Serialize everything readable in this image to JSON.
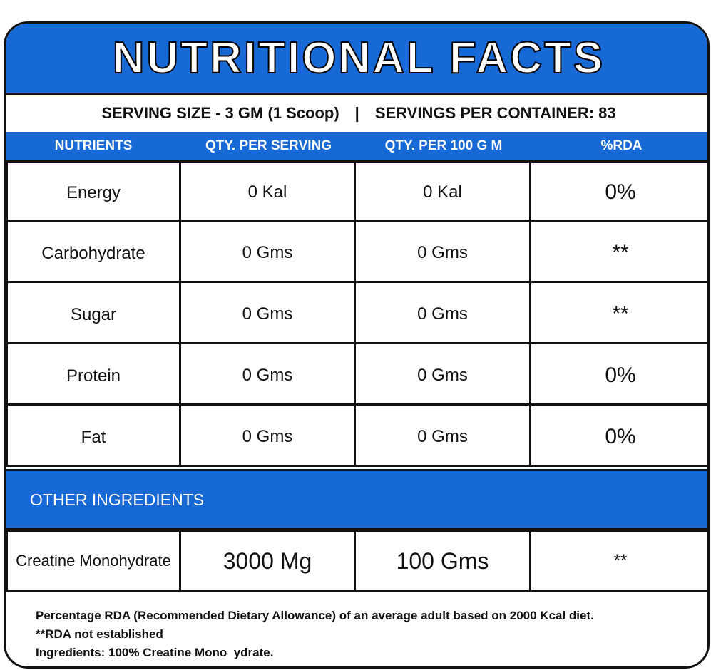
{
  "header": {
    "title": "NUTRITIONAL FACTS"
  },
  "serving": {
    "size": "SERVING SIZE - 3 GM (1 Scoop)",
    "separator": "|",
    "per_container": "SERVINGS PER CONTAINER: 83"
  },
  "table": {
    "columns": [
      "NUTRIENTS",
      "QTY. PER SERVING",
      "QTY. PER 100 G M",
      "%RDA"
    ],
    "rows": [
      [
        "Energy",
        "0 Kal",
        "0 Kal",
        "0%"
      ],
      [
        "Carbohydrate",
        "0 Gms",
        "0 Gms",
        "**"
      ],
      [
        "Sugar",
        "0 Gms",
        "0 Gms",
        "**"
      ],
      [
        "Protein",
        "0 Gms",
        "0 Gms",
        "0%"
      ],
      [
        "Fat",
        "0 Gms",
        "0 Gms",
        "0%"
      ]
    ]
  },
  "other": {
    "title": "OTHER INGREDIENTS",
    "rows": [
      [
        "Creatine Monohydrate",
        "3000 Mg",
        "100 Gms",
        "**"
      ]
    ]
  },
  "footer": {
    "lines": [
      "Percentage RDA (Recommended Dietary Allowance) of an average adult based on 2000 Kcal diet.",
      "**RDA not established",
      "Ingredients: 100% Creatine Mono  ydrate."
    ]
  }
}
